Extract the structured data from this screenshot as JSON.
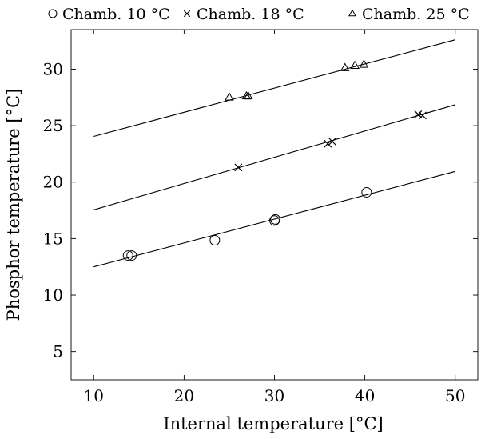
{
  "chart_data": {
    "type": "scatter",
    "title": "",
    "xlabel": "Internal temperature [°C]",
    "ylabel": "Phosphor temperature [°C]",
    "xlim": [
      7.5,
      52.5
    ],
    "ylim": [
      2.5,
      33.5
    ],
    "x_ticks": [
      10,
      20,
      30,
      40,
      50
    ],
    "y_ticks": [
      5,
      10,
      15,
      20,
      25,
      30
    ],
    "grid": false,
    "legend_position": "top",
    "series": [
      {
        "name": "Chamb. 10 °C",
        "marker": "circle",
        "points": [
          [
            13.8,
            13.5
          ],
          [
            14.2,
            13.5
          ],
          [
            23.4,
            14.85
          ],
          [
            30.0,
            16.6
          ],
          [
            30.1,
            16.7
          ],
          [
            40.2,
            19.1
          ]
        ],
        "fit": [
          [
            10,
            12.5
          ],
          [
            50,
            20.95
          ]
        ]
      },
      {
        "name": "Chamb. 18 °C",
        "marker": "cross",
        "points": [
          [
            26.0,
            21.3
          ],
          [
            35.9,
            23.4
          ],
          [
            36.4,
            23.6
          ],
          [
            45.9,
            26.0
          ],
          [
            46.4,
            25.9
          ]
        ],
        "fit": [
          [
            10,
            17.55
          ],
          [
            50,
            26.85
          ]
        ]
      },
      {
        "name": "Chamb. 25 °C",
        "marker": "triangle",
        "points": [
          [
            25.0,
            27.5
          ],
          [
            26.9,
            27.6
          ],
          [
            27.1,
            27.6
          ],
          [
            37.8,
            30.1
          ],
          [
            38.9,
            30.3
          ],
          [
            39.9,
            30.4
          ]
        ],
        "fit": [
          [
            10,
            24.05
          ],
          [
            50,
            32.6
          ]
        ]
      }
    ]
  }
}
